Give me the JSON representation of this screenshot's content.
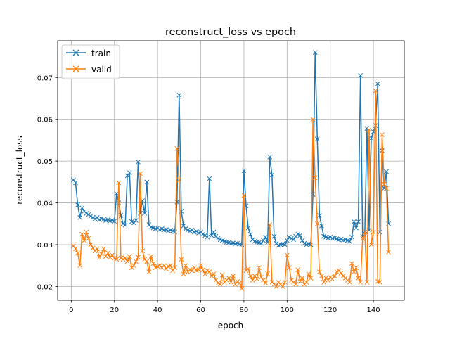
{
  "chart_data": {
    "type": "line",
    "title": "reconstruct_loss vs epoch",
    "xlabel": "epoch",
    "ylabel": "reconstruct_loss",
    "xlim": [
      -6.3,
      154.3
    ],
    "ylim": [
      0.0167,
      0.0788
    ],
    "xticks": [
      0,
      20,
      40,
      60,
      80,
      100,
      120,
      140
    ],
    "yticks": [
      0.02,
      0.03,
      0.04,
      0.05,
      0.06,
      0.07
    ],
    "ytick_labels": [
      "0.02",
      "0.03",
      "0.04",
      "0.05",
      "0.06",
      "0.07"
    ],
    "grid": true,
    "legend": "top-left",
    "marker": "x",
    "x_start": 1,
    "series": [
      {
        "name": "train",
        "color": "#1f77b4",
        "values": [
          0.0455,
          0.0448,
          0.0395,
          0.0365,
          0.0388,
          0.038,
          0.0375,
          0.0372,
          0.0368,
          0.0365,
          0.0362,
          0.0365,
          0.036,
          0.0362,
          0.036,
          0.0358,
          0.036,
          0.0357,
          0.0358,
          0.0356,
          0.0422,
          0.04,
          0.037,
          0.035,
          0.0347,
          0.0465,
          0.0472,
          0.0355,
          0.0352,
          0.0358,
          0.0498,
          0.0375,
          0.0405,
          0.0375,
          0.045,
          0.0348,
          0.0342,
          0.034,
          0.0338,
          0.034,
          0.0336,
          0.0338,
          0.0335,
          0.0336,
          0.0333,
          0.0335,
          0.0333,
          0.0331,
          0.0402,
          0.0658,
          0.038,
          0.0345,
          0.0338,
          0.0335,
          0.0333,
          0.0335,
          0.033,
          0.0332,
          0.0328,
          0.033,
          0.0325,
          0.0322,
          0.0318,
          0.0458,
          0.0322,
          0.033,
          0.032,
          0.0315,
          0.0312,
          0.031,
          0.0308,
          0.0306,
          0.0305,
          0.0303,
          0.0304,
          0.0302,
          0.0303,
          0.0301,
          0.03,
          0.0477,
          0.0393,
          0.034,
          0.0325,
          0.0312,
          0.0308,
          0.0306,
          0.0305,
          0.0303,
          0.031,
          0.0318,
          0.0305,
          0.051,
          0.0467,
          0.032,
          0.0303,
          0.0298,
          0.03,
          0.0302,
          0.03,
          0.031,
          0.0318,
          0.0315,
          0.0312,
          0.032,
          0.0325,
          0.0322,
          0.031,
          0.0303,
          0.03,
          0.0302,
          0.03,
          0.042,
          0.076,
          0.0553,
          0.037,
          0.0345,
          0.032,
          0.0318,
          0.0316,
          0.0318,
          0.0315,
          0.0316,
          0.0314,
          0.0312,
          0.0313,
          0.0311,
          0.0312,
          0.031,
          0.0308,
          0.0318,
          0.0355,
          0.034,
          0.0355,
          0.0705,
          0.032,
          0.0325,
          0.0578,
          0.0335,
          0.0555,
          0.057,
          0.0585,
          0.0685,
          0.033,
          0.0525,
          0.0435,
          0.0475,
          0.035
        ]
      },
      {
        "name": "valid",
        "color": "#ff7f0e",
        "values": [
          0.0297,
          0.029,
          0.028,
          0.025,
          0.0325,
          0.031,
          0.033,
          0.0315,
          0.03,
          0.0292,
          0.0285,
          0.029,
          0.027,
          0.0278,
          0.029,
          0.0272,
          0.028,
          0.027,
          0.0275,
          0.0268,
          0.0265,
          0.0448,
          0.0268,
          0.0265,
          0.0268,
          0.026,
          0.0272,
          0.0245,
          0.025,
          0.026,
          0.027,
          0.047,
          0.0285,
          0.0265,
          0.026,
          0.0235,
          0.0272,
          0.0255,
          0.0245,
          0.0248,
          0.025,
          0.0245,
          0.025,
          0.0242,
          0.0248,
          0.025,
          0.0238,
          0.0245,
          0.053,
          0.0455,
          0.0265,
          0.023,
          0.025,
          0.0235,
          0.024,
          0.0238,
          0.0245,
          0.0238,
          0.024,
          0.025,
          0.024,
          0.023,
          0.0238,
          0.0235,
          0.0225,
          0.023,
          0.0215,
          0.0208,
          0.0205,
          0.0228,
          0.021,
          0.0215,
          0.022,
          0.021,
          0.0225,
          0.0205,
          0.0212,
          0.0208,
          0.0195,
          0.0418,
          0.0238,
          0.0242,
          0.0225,
          0.0215,
          0.0225,
          0.0218,
          0.0245,
          0.0222,
          0.0215,
          0.0208,
          0.023,
          0.0348,
          0.021,
          0.0205,
          0.02,
          0.021,
          0.0205,
          0.02,
          0.021,
          0.0275,
          0.0245,
          0.0215,
          0.021,
          0.0205,
          0.024,
          0.0212,
          0.022,
          0.0205,
          0.021,
          0.023,
          0.022,
          0.06,
          0.046,
          0.035,
          0.0235,
          0.0225,
          0.021,
          0.022,
          0.0215,
          0.0222,
          0.0218,
          0.0225,
          0.0235,
          0.0238,
          0.0232,
          0.0225,
          0.022,
          0.0215,
          0.021,
          0.0255,
          0.0235,
          0.0245,
          0.022,
          0.021,
          0.0315,
          0.033,
          0.021,
          0.0575,
          0.03,
          0.033,
          0.0668,
          0.0212,
          0.021,
          0.0563,
          0.0445,
          0.0435,
          0.0282
        ]
      }
    ]
  }
}
